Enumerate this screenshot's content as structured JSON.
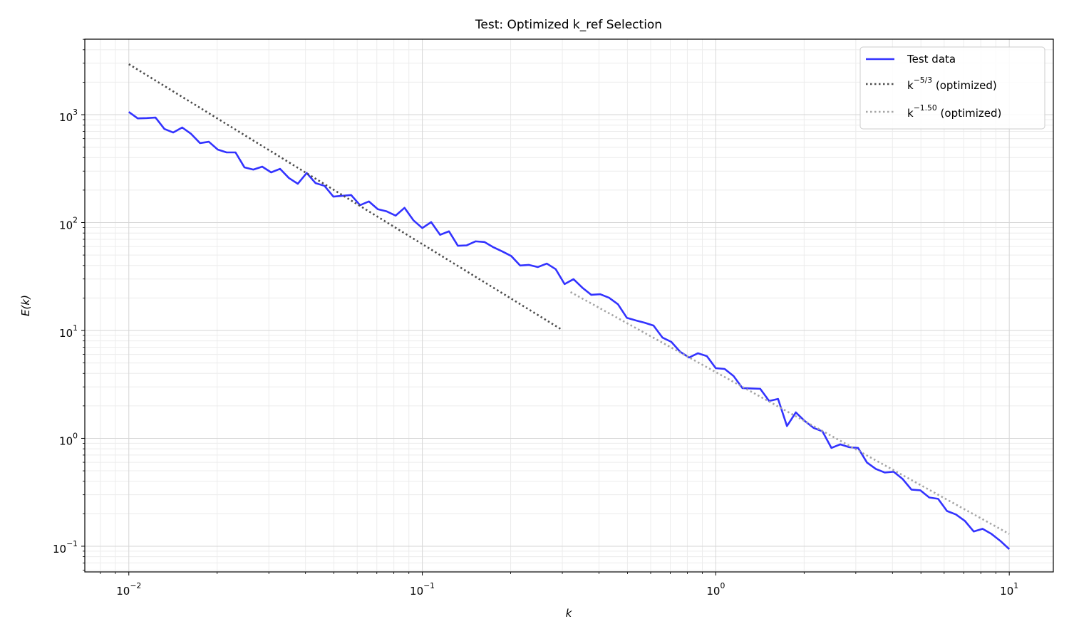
{
  "chart_data": {
    "type": "line",
    "title": "Test: Optimized k_ref Selection",
    "xlabel": "k",
    "ylabel": "E(k)",
    "xscale": "log",
    "yscale": "log",
    "grid": true,
    "legend": "upper right",
    "xlim": [
      0.00708,
      14.13
    ],
    "ylim": [
      0.0578,
      5012
    ],
    "xticks": [
      {
        "value": 0.01,
        "label": "10^{−2}"
      },
      {
        "value": 0.1,
        "label": "10^{−1}"
      },
      {
        "value": 1,
        "label": "10^{0}"
      },
      {
        "value": 10,
        "label": "10^{1}"
      }
    ],
    "yticks": [
      {
        "value": 0.1,
        "label": "10^{−1}"
      },
      {
        "value": 1,
        "label": "10^{0}"
      },
      {
        "value": 10,
        "label": "10^{1}"
      },
      {
        "value": 100,
        "label": "10^{2}"
      },
      {
        "value": 1000,
        "label": "10^{3}"
      }
    ],
    "xminorticks": [
      0.008,
      0.009,
      0.02,
      0.03,
      0.04,
      0.05,
      0.06,
      0.07,
      0.08,
      0.09,
      0.2,
      0.3,
      0.4,
      0.5,
      0.6,
      0.7,
      0.8,
      0.9,
      2,
      3,
      4,
      5,
      6,
      7,
      8,
      9
    ],
    "yminorticks": [
      0.06,
      0.07,
      0.08,
      0.09,
      0.2,
      0.3,
      0.4,
      0.5,
      0.6,
      0.7,
      0.8,
      0.9,
      2,
      3,
      4,
      5,
      6,
      7,
      8,
      9,
      20,
      30,
      40,
      50,
      60,
      70,
      80,
      90,
      200,
      300,
      400,
      500,
      600,
      700,
      800,
      900,
      2000,
      3000,
      4000,
      5000
    ],
    "series": [
      {
        "name": "Test data",
        "color": "#3333ff",
        "linestyle": "solid",
        "x": [
          0.01,
          0.01072,
          0.0115,
          0.01233,
          0.01322,
          0.01417,
          0.0152,
          0.0163,
          0.01748,
          0.01874,
          0.02009,
          0.02154,
          0.0231,
          0.02477,
          0.02656,
          0.02848,
          0.03054,
          0.03275,
          0.03511,
          0.03765,
          0.04037,
          0.04329,
          0.04642,
          0.04977,
          0.05337,
          0.05722,
          0.06136,
          0.06579,
          0.07055,
          0.07565,
          0.08111,
          0.08697,
          0.09326,
          0.1,
          0.1072,
          0.115,
          0.1233,
          0.1322,
          0.1417,
          0.152,
          0.163,
          0.1748,
          0.1874,
          0.2009,
          0.2154,
          0.231,
          0.2477,
          0.2656,
          0.2848,
          0.3054,
          0.3275,
          0.3511,
          0.3765,
          0.4037,
          0.4329,
          0.4642,
          0.4977,
          0.5337,
          0.5722,
          0.6136,
          0.6579,
          0.7055,
          0.7565,
          0.8111,
          0.8697,
          0.9326,
          1.0,
          1.072,
          1.15,
          1.233,
          1.322,
          1.417,
          1.52,
          1.63,
          1.748,
          1.874,
          2.009,
          2.154,
          2.31,
          2.477,
          2.656,
          2.848,
          3.054,
          3.275,
          3.511,
          3.765,
          4.037,
          4.329,
          4.642,
          4.977,
          5.337,
          5.722,
          6.136,
          6.579,
          7.055,
          7.565,
          8.111,
          8.697,
          9.326,
          10
        ],
        "values": [
          1060,
          925,
          930,
          940,
          738,
          684,
          761,
          664,
          545,
          561,
          475,
          447,
          447,
          325,
          310,
          330,
          292,
          315,
          259,
          229,
          288,
          232,
          219,
          174,
          177,
          180,
          145,
          157,
          133,
          127,
          116,
          137,
          105,
          89,
          101,
          77,
          83,
          61,
          61.5,
          67,
          66,
          59,
          54,
          49,
          40,
          40.5,
          38.7,
          41.7,
          37,
          26.9,
          29.9,
          24.9,
          21.4,
          21.7,
          20.1,
          17.5,
          13.1,
          12.4,
          11.8,
          11.1,
          8.6,
          7.84,
          6.34,
          5.61,
          6.15,
          5.78,
          4.47,
          4.4,
          3.78,
          2.92,
          2.9,
          2.88,
          2.22,
          2.32,
          1.3,
          1.74,
          1.45,
          1.25,
          1.16,
          0.815,
          0.88,
          0.828,
          0.815,
          0.597,
          0.52,
          0.482,
          0.49,
          0.421,
          0.335,
          0.33,
          0.283,
          0.275,
          0.212,
          0.197,
          0.172,
          0.137,
          0.145,
          0.13,
          0.112,
          0.094
        ]
      },
      {
        "name": "k^{−5/3} (optimized)",
        "color": "#4d4d4d",
        "linestyle": "dotted",
        "x": [
          0.01,
          0.3
        ],
        "values": [
          2940,
          10.1
        ]
      },
      {
        "name": "k^{−1.50} (optimized)",
        "color": "#a6a6a6",
        "linestyle": "dotted",
        "x": [
          0.32,
          10
        ],
        "values": [
          22.7,
          0.13
        ]
      }
    ]
  }
}
